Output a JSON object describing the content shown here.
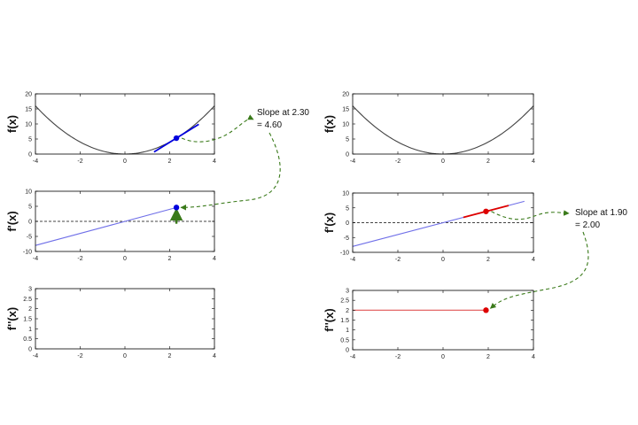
{
  "chart_data": [
    {
      "type": "line",
      "panel": "left-top",
      "ylabel": "f(x)",
      "xlim": [
        -4,
        4
      ],
      "ylim": [
        0,
        20
      ],
      "xticks": [
        "-4",
        "-2",
        "0",
        "2",
        "4"
      ],
      "yticks": [
        "0",
        "5",
        "10",
        "15",
        "20"
      ],
      "series": [
        {
          "function": "x^2",
          "color": "#444444",
          "values": [
            [
              -4,
              16
            ],
            [
              -2,
              4
            ],
            [
              0,
              0
            ],
            [
              2,
              4
            ],
            [
              4,
              16
            ]
          ]
        }
      ],
      "tangent": {
        "x0": 2.3,
        "y0": 5.29,
        "slope": 4.6,
        "x_range": [
          1.3,
          3.3
        ],
        "color": "#0000dd"
      },
      "point": {
        "x": 2.3,
        "y": 5.29,
        "color": "#0000dd"
      }
    },
    {
      "type": "line",
      "panel": "left-middle",
      "ylabel": "f'(x)",
      "xlim": [
        -4,
        4
      ],
      "ylim": [
        -10,
        10
      ],
      "xticks": [
        "-4",
        "-2",
        "0",
        "2",
        "4"
      ],
      "yticks": [
        "-10",
        "-5",
        "0",
        "5",
        "10"
      ],
      "series": [
        {
          "function": "2x",
          "color": "#6f6fe8",
          "values": [
            [
              -4,
              -8
            ],
            [
              2.3,
              4.6
            ]
          ]
        }
      ],
      "zero_line": true,
      "point": {
        "x": 2.3,
        "y": 4.6,
        "color": "#0000dd"
      },
      "up_arrow": {
        "x": 2.3,
        "from": -0.8,
        "to": 4.1,
        "color": "#3a7a1a"
      }
    },
    {
      "type": "line",
      "panel": "left-bottom",
      "ylabel": "f''(x)",
      "xlim": [
        -4,
        4
      ],
      "ylim": [
        0,
        3
      ],
      "xticks": [
        "-4",
        "-2",
        "0",
        "2",
        "4"
      ],
      "yticks": [
        "0",
        "0.5",
        "1",
        "1.5",
        "2",
        "2.5",
        "3"
      ],
      "series": []
    },
    {
      "type": "line",
      "panel": "right-top",
      "ylabel": "f(x)",
      "xlim": [
        -4,
        4
      ],
      "ylim": [
        0,
        20
      ],
      "xticks": [
        "-4",
        "-2",
        "0",
        "2",
        "4"
      ],
      "yticks": [
        "0",
        "5",
        "10",
        "15",
        "20"
      ],
      "series": [
        {
          "function": "x^2",
          "color": "#444444",
          "values": [
            [
              -4,
              16
            ],
            [
              -2,
              4
            ],
            [
              0,
              0
            ],
            [
              2,
              4
            ],
            [
              4,
              16
            ]
          ]
        }
      ]
    },
    {
      "type": "line",
      "panel": "right-middle",
      "ylabel": "f'(x)",
      "xlim": [
        -4,
        4
      ],
      "ylim": [
        -10,
        10
      ],
      "xticks": [
        "-4",
        "-2",
        "0",
        "2",
        "4"
      ],
      "yticks": [
        "-10",
        "-5",
        "0",
        "5",
        "10"
      ],
      "series": [
        {
          "function": "2x",
          "color": "#6f6fe8",
          "values": [
            [
              -4,
              -8
            ],
            [
              3.6,
              7.2
            ]
          ]
        }
      ],
      "zero_line": true,
      "tangent": {
        "x0": 1.9,
        "y0": 3.8,
        "slope": 2.0,
        "x_range": [
          0.9,
          2.9
        ],
        "color": "#dd0000"
      },
      "point": {
        "x": 1.9,
        "y": 3.8,
        "color": "#dd0000"
      }
    },
    {
      "type": "line",
      "panel": "right-bottom",
      "ylabel": "f''(x)",
      "xlim": [
        -4,
        4
      ],
      "ylim": [
        0,
        3
      ],
      "xticks": [
        "-4",
        "-2",
        "0",
        "2",
        "4"
      ],
      "yticks": [
        "0",
        "0.5",
        "1",
        "1.5",
        "2",
        "2.5",
        "3"
      ],
      "series": [
        {
          "function": "2",
          "color": "#e05555",
          "values": [
            [
              -4,
              2
            ],
            [
              1.9,
              2
            ]
          ]
        }
      ],
      "point": {
        "x": 1.9,
        "y": 2.0,
        "color": "#dd0000"
      }
    }
  ],
  "annotations": {
    "left": {
      "line1": "Slope at 2.30",
      "line2": "= 4.60"
    },
    "right": {
      "line1": "Slope at 1.90",
      "line2": "= 2.00"
    }
  },
  "colors": {
    "arrow": "#3a7a1a"
  }
}
